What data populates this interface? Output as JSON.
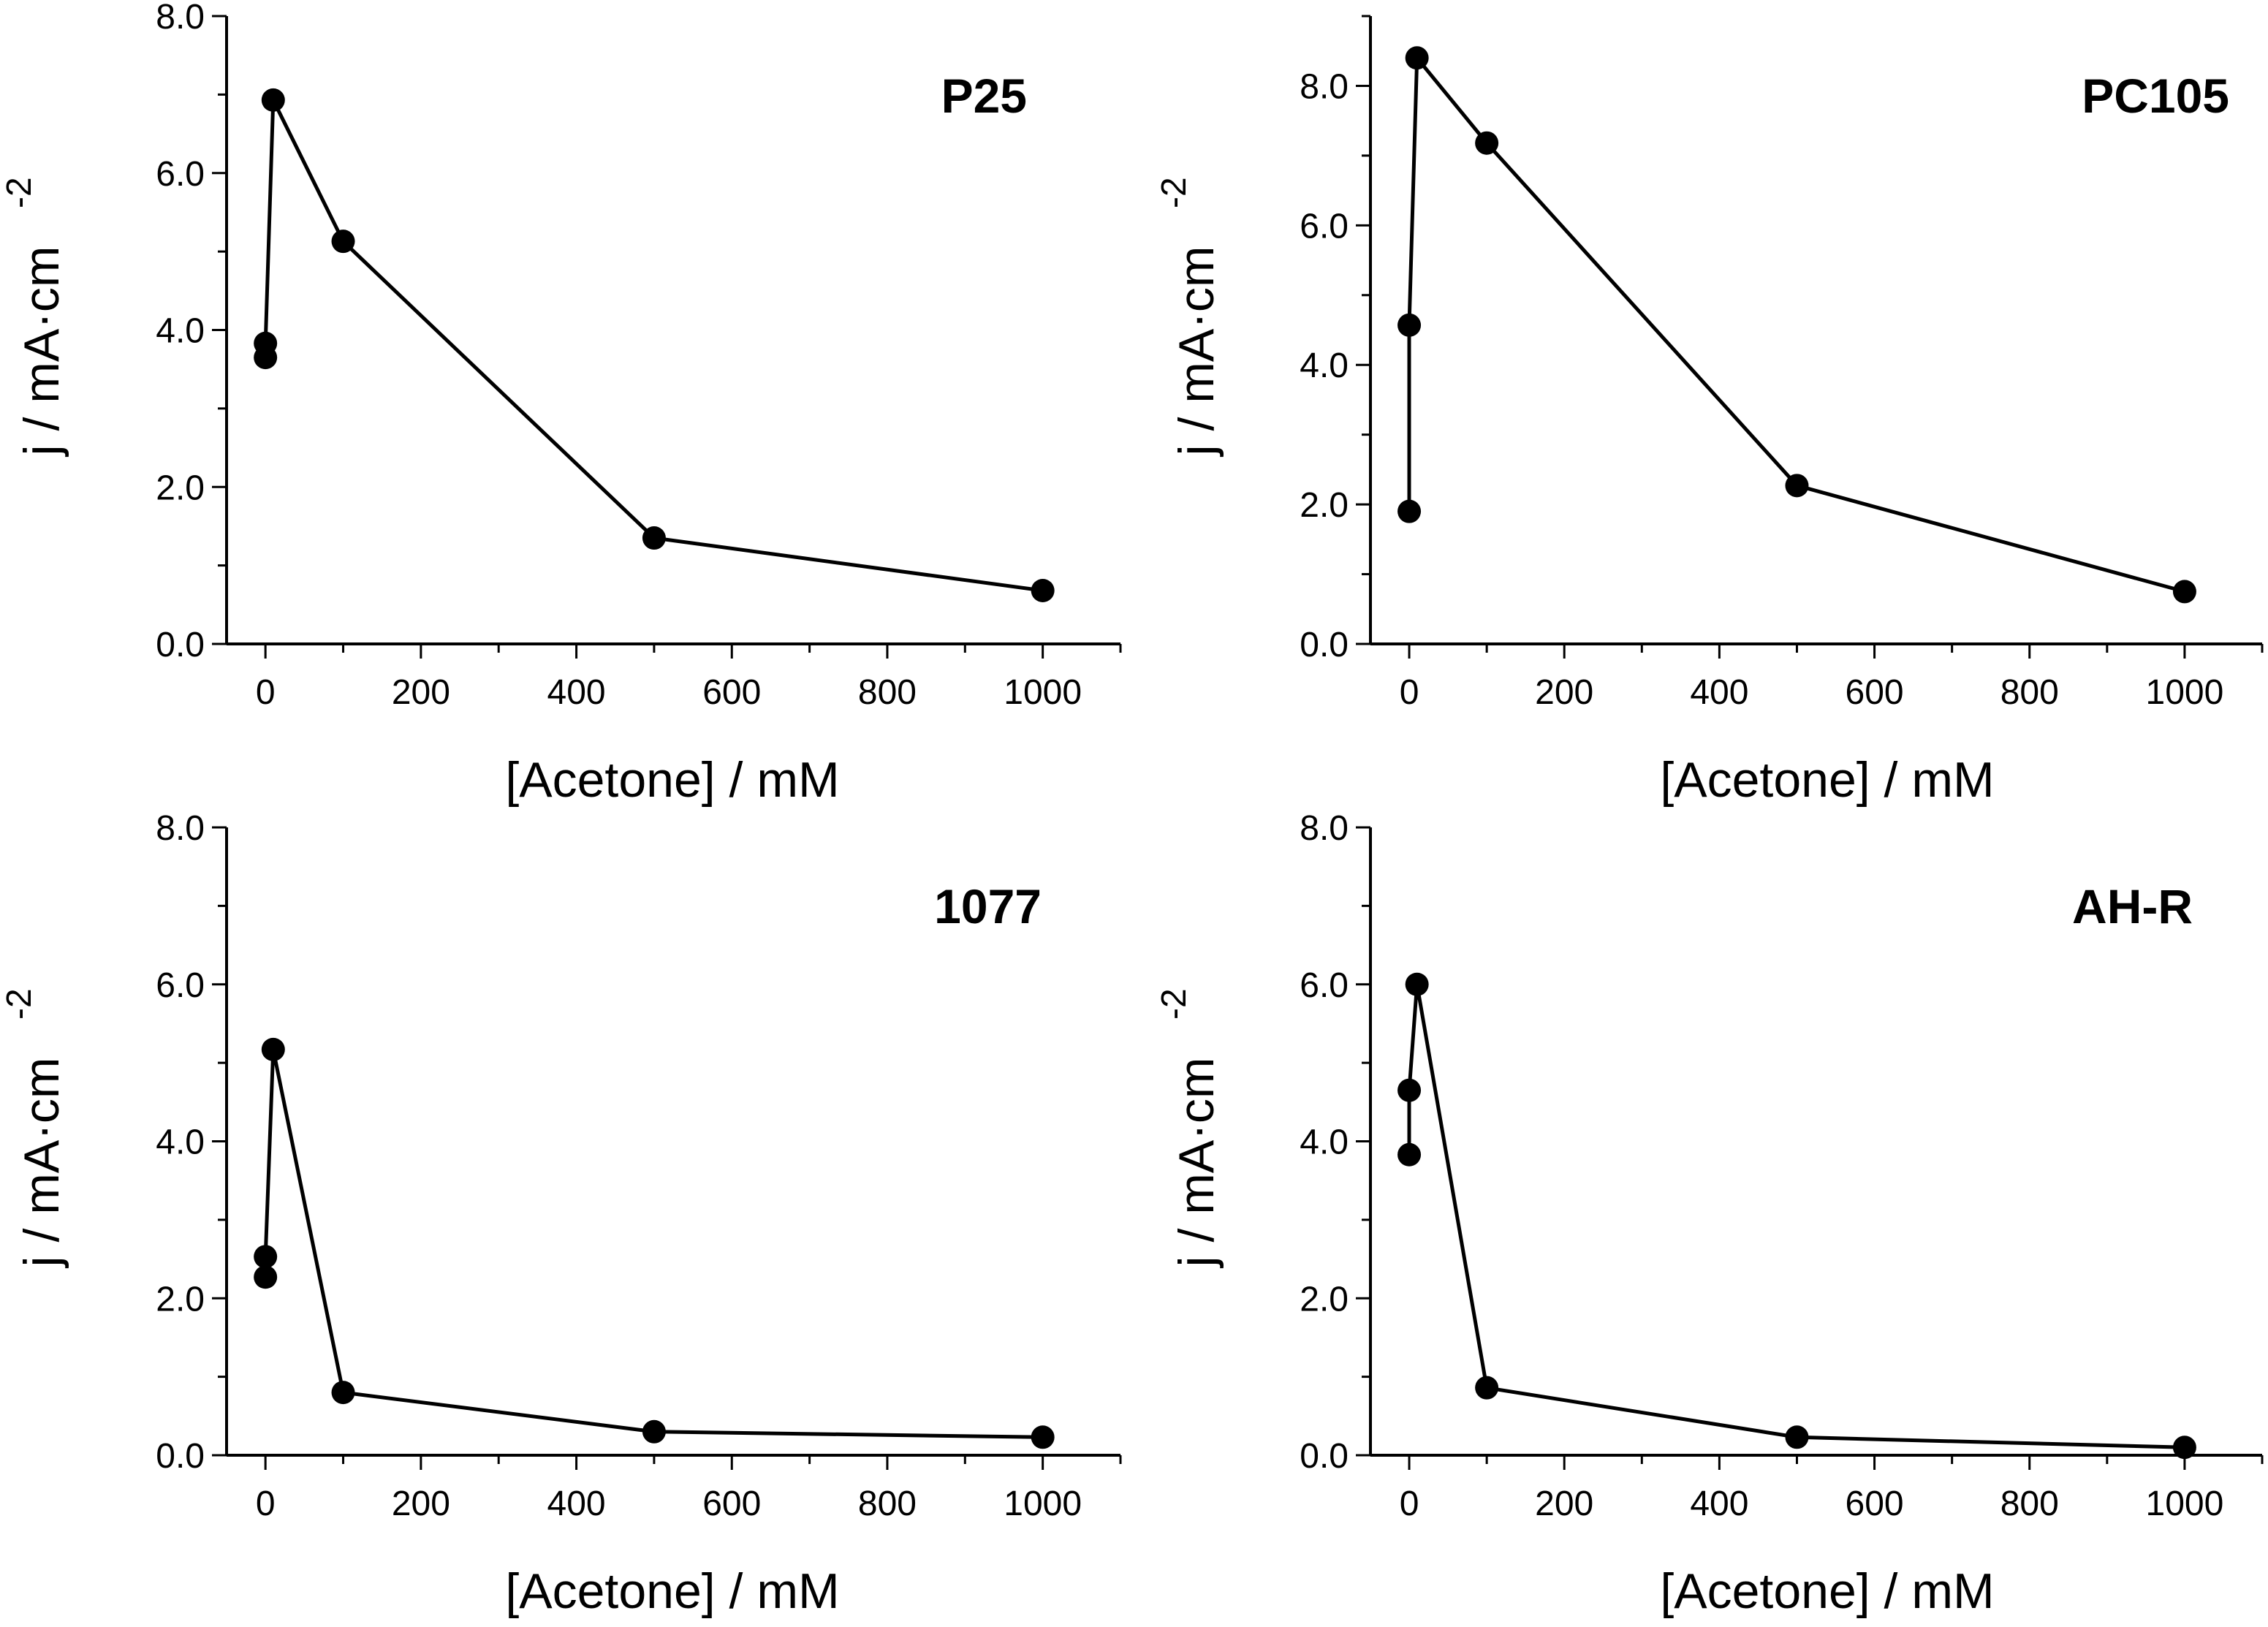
{
  "figure": {
    "colors": {
      "ink": "#000000",
      "background": "#ffffff"
    }
  },
  "chart_data": [
    {
      "type": "line",
      "panel_label": "P25",
      "xlabel": "[Acetone] / mM",
      "ylabel": "j / mA·cm",
      "ylabel_superscript": "-2",
      "xlim": [
        -50,
        1100
      ],
      "ylim": [
        0,
        8.0
      ],
      "xticks": [
        0,
        200,
        400,
        600,
        800,
        1000
      ],
      "xtick_labels": [
        "0",
        "200",
        "400",
        "600",
        "800",
        "1000"
      ],
      "yticks": [
        0,
        2,
        4,
        6,
        8
      ],
      "ytick_labels": [
        "0.0",
        "2.0",
        "4.0",
        "6.0",
        "8.0"
      ],
      "markers": "filled-circle",
      "grid": false,
      "series": [
        {
          "name": "P25",
          "x": [
            0,
            0,
            10,
            100,
            500,
            1000
          ],
          "y": [
            3.65,
            3.83,
            6.93,
            5.13,
            1.35,
            0.68
          ]
        }
      ]
    },
    {
      "type": "line",
      "panel_label": "PC105",
      "xlabel": "[Acetone] / mM",
      "ylabel": "j / mA·cm",
      "ylabel_superscript": "-2",
      "xlim": [
        -50,
        1100
      ],
      "ylim": [
        0,
        9.0
      ],
      "xticks": [
        0,
        200,
        400,
        600,
        800,
        1000
      ],
      "xtick_labels": [
        "0",
        "200",
        "400",
        "600",
        "800",
        "1000"
      ],
      "yticks": [
        0,
        2,
        4,
        6,
        8
      ],
      "ytick_labels": [
        "0.0",
        "2.0",
        "4.0",
        "6.0",
        "8.0"
      ],
      "markers": "filled-circle",
      "grid": false,
      "series": [
        {
          "name": "PC105",
          "x": [
            0,
            0,
            10,
            100,
            500,
            1000
          ],
          "y": [
            1.9,
            4.57,
            8.4,
            7.18,
            2.27,
            0.75
          ]
        }
      ]
    },
    {
      "type": "line",
      "panel_label": "1077",
      "xlabel": "[Acetone] / mM",
      "ylabel": "j / mA·cm",
      "ylabel_superscript": "-2",
      "xlim": [
        -50,
        1100
      ],
      "ylim": [
        0,
        8.0
      ],
      "xticks": [
        0,
        200,
        400,
        600,
        800,
        1000
      ],
      "xtick_labels": [
        "0",
        "200",
        "400",
        "600",
        "800",
        "1000"
      ],
      "yticks": [
        0,
        2,
        4,
        6,
        8
      ],
      "ytick_labels": [
        "0.0",
        "2.0",
        "4.0",
        "6.0",
        "8.0"
      ],
      "markers": "filled-circle",
      "grid": false,
      "series": [
        {
          "name": "1077",
          "x": [
            0,
            0,
            10,
            100,
            500,
            1000
          ],
          "y": [
            2.27,
            2.53,
            5.17,
            0.8,
            0.3,
            0.23
          ]
        }
      ]
    },
    {
      "type": "line",
      "panel_label": "AH-R",
      "xlabel": "[Acetone] / mM",
      "ylabel": "j / mA·cm",
      "ylabel_superscript": "-2",
      "xlim": [
        -50,
        1100
      ],
      "ylim": [
        0,
        8.0
      ],
      "xticks": [
        0,
        200,
        400,
        600,
        800,
        1000
      ],
      "xtick_labels": [
        "0",
        "200",
        "400",
        "600",
        "800",
        "1000"
      ],
      "yticks": [
        0,
        2,
        4,
        6,
        8
      ],
      "ytick_labels": [
        "0.0",
        "2.0",
        "4.0",
        "6.0",
        "8.0"
      ],
      "markers": "filled-circle",
      "grid": false,
      "series": [
        {
          "name": "AH-R",
          "x": [
            0,
            0,
            10,
            100,
            500,
            1000
          ],
          "y": [
            3.83,
            4.65,
            6.0,
            0.86,
            0.23,
            0.1
          ]
        }
      ]
    }
  ]
}
